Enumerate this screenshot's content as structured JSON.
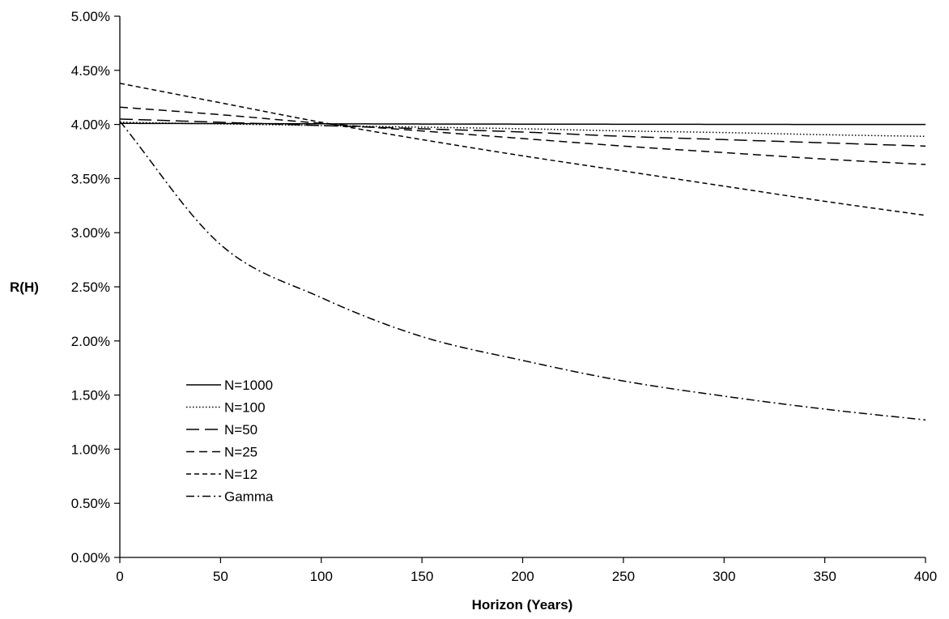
{
  "chart_data": {
    "type": "line",
    "title": "",
    "xlabel": "Horizon (Years)",
    "ylabel": "R(H)",
    "xlim": [
      0,
      400
    ],
    "ylim": [
      0,
      0.05
    ],
    "x_ticks": [
      0,
      50,
      100,
      150,
      200,
      250,
      300,
      350,
      400
    ],
    "y_ticks": [
      0.0,
      0.005,
      0.01,
      0.015,
      0.02,
      0.025,
      0.03,
      0.035,
      0.04,
      0.045,
      0.05
    ],
    "x_tick_labels": [
      "0",
      "50",
      "100",
      "150",
      "200",
      "250",
      "300",
      "350",
      "400"
    ],
    "y_tick_labels": [
      "0.00%",
      "0.50%",
      "1.00%",
      "1.50%",
      "2.00%",
      "2.50%",
      "3.00%",
      "3.50%",
      "4.00%",
      "4.50%",
      "5.00%"
    ],
    "grid": false,
    "legend_position": "lower-left",
    "line_color": "#000000",
    "x": [
      0,
      50,
      100,
      150,
      200,
      250,
      300,
      350,
      400
    ],
    "series": [
      {
        "name": "N=1000",
        "dash": "solid",
        "values": [
          0.0401,
          0.04008,
          0.04006,
          0.04004,
          0.04003,
          0.04002,
          0.04001,
          0.04,
          0.04
        ]
      },
      {
        "name": "N=100",
        "dash": "dotted",
        "values": [
          0.0402,
          0.04005,
          0.0399,
          0.03975,
          0.0396,
          0.0394,
          0.03925,
          0.03905,
          0.0389
        ]
      },
      {
        "name": "N=50",
        "dash": "long-dash",
        "values": [
          0.0405,
          0.0402,
          0.0399,
          0.0396,
          0.0393,
          0.0389,
          0.0386,
          0.0383,
          0.038
        ]
      },
      {
        "name": "N=25",
        "dash": "dash",
        "values": [
          0.0416,
          0.0409,
          0.0401,
          0.0394,
          0.0387,
          0.038,
          0.0374,
          0.0368,
          0.0363
        ]
      },
      {
        "name": "N=12",
        "dash": "short-dash",
        "values": [
          0.0438,
          0.042,
          0.0402,
          0.0386,
          0.0371,
          0.0357,
          0.0343,
          0.0329,
          0.0316
        ]
      },
      {
        "name": "Gamma",
        "dash": "dash-dot",
        "values": [
          0.0403,
          0.0289,
          0.024,
          0.0204,
          0.0182,
          0.0163,
          0.0149,
          0.0137,
          0.0127
        ]
      }
    ]
  }
}
